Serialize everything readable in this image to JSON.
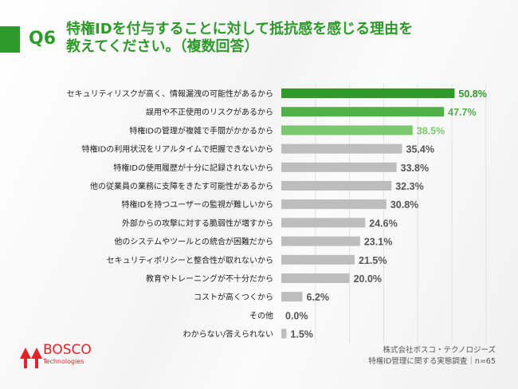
{
  "header": {
    "question_no": "Q6",
    "title_line1": "特権IDを付与することに対して抵抗感を感じる理由を",
    "title_line2": "教えてください。（複数回答）"
  },
  "logo": {
    "name": "BOSCO",
    "sub": "Technologies"
  },
  "credit": {
    "line1": "株式会社ボスコ・テクノロジーズ",
    "line2": "特権ID管理に関する実態調査｜n=65"
  },
  "chart_data": {
    "type": "bar",
    "orientation": "horizontal",
    "categories": [
      "セキュリティリスクが高く、情報漏洩の可能性があるから",
      "誤用や不正使用のリスクがあるから",
      "特権IDの管理が複雑で手間がかかるから",
      "特権IDの利用状況をリアルタイムで把握できないから",
      "特権IDの使用履歴が十分に記録されないから",
      "他の従業員の業務に支障をきたす可能性があるから",
      "特権IDを持つユーザーの監視が難しいから",
      "外部からの攻撃に対する脆弱性が増すから",
      "他のシステムやツールとの統合が困難だから",
      "セキュリティポリシーと整合性が取れないから",
      "教育やトレーニングが不十分だから",
      "コストが高くつくから",
      "その他",
      "わからない/答えられない"
    ],
    "values": [
      50.8,
      47.7,
      38.5,
      35.4,
      33.8,
      32.3,
      30.8,
      24.6,
      23.1,
      21.5,
      20.0,
      6.2,
      0.0,
      1.5
    ],
    "labels": [
      "50.8%",
      "47.7%",
      "38.5%",
      "35.4%",
      "33.8%",
      "32.3%",
      "30.8%",
      "24.6%",
      "23.1%",
      "21.5%",
      "20.0%",
      "6.2%",
      "0.0%",
      "1.5%"
    ],
    "xlim": [
      0,
      60
    ],
    "grid": true,
    "colors": [
      "#2e9a2a",
      "#52b04a",
      "#7ac96e",
      "#bdbdbd",
      "#bdbdbd",
      "#bdbdbd",
      "#bdbdbd",
      "#bdbdbd",
      "#bdbdbd",
      "#bdbdbd",
      "#bdbdbd",
      "#bdbdbd",
      "#bdbdbd",
      "#bdbdbd"
    ],
    "label_colors": [
      "#2e9a2a",
      "#52b04a",
      "#7ac96e",
      "#555555",
      "#555555",
      "#555555",
      "#555555",
      "#555555",
      "#555555",
      "#555555",
      "#555555",
      "#555555",
      "#555555",
      "#555555"
    ]
  }
}
